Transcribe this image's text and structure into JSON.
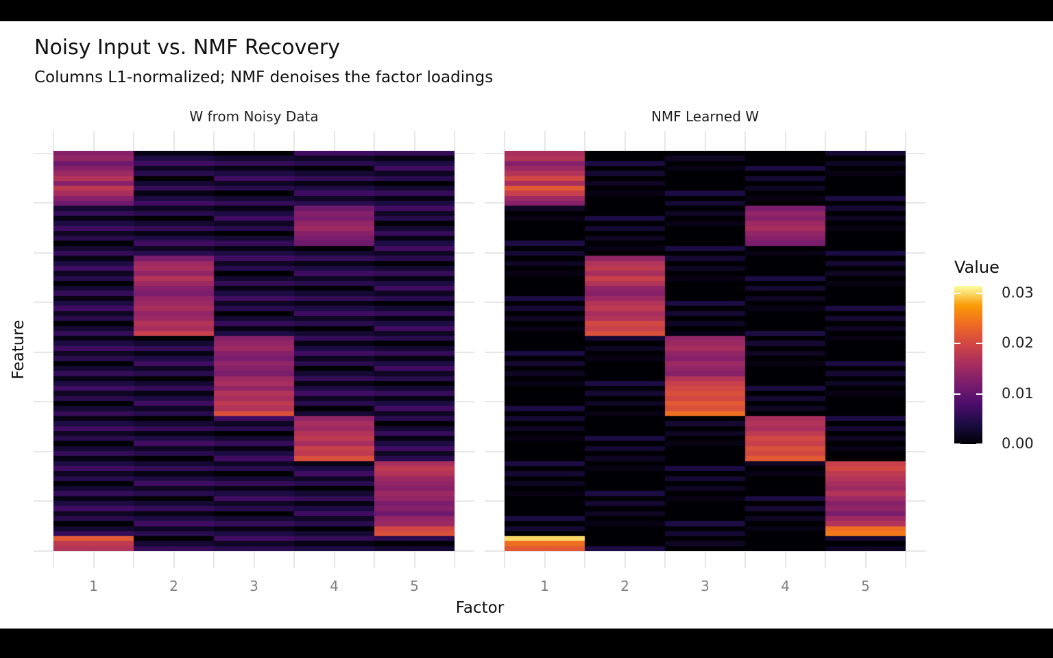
{
  "title": "Noisy Input vs. NMF Recovery",
  "subtitle": "Columns L1-normalized; NMF denoises the factor loadings",
  "axes": {
    "x_label": "Factor",
    "y_label": "Feature",
    "x_ticks": [
      "1",
      "2",
      "3",
      "4",
      "5"
    ]
  },
  "legend": {
    "title": "Value",
    "ticks": [
      "0.03",
      "0.02",
      "0.01",
      "0.00"
    ],
    "tick_values": [
      0.03,
      0.02,
      0.01,
      0.0
    ]
  },
  "style": {
    "background": "#ffffff",
    "letterbox": "#000000",
    "grid_color": "#e7e7e7",
    "tick_label_color": "#7f7f7f",
    "text_color": "#101010"
  },
  "chart_data": {
    "type": "heatmap",
    "title": "Noisy Input vs. NMF Recovery",
    "subtitle": "Columns L1-normalized; NMF denoises the factor loadings",
    "xlabel": "Factor",
    "ylabel": "Feature",
    "factors": [
      1,
      2,
      3,
      4,
      5
    ],
    "n_features": 80,
    "vmin": 0,
    "vmax": 0.0315,
    "value_scale": 0.001,
    "legend_position": "right",
    "grid": true,
    "colormap": {
      "name": "inferno",
      "stops": [
        [
          0.0,
          "#000004"
        ],
        [
          0.125,
          "#1B0C42"
        ],
        [
          0.25,
          "#4B0C6B"
        ],
        [
          0.375,
          "#781C6D"
        ],
        [
          0.5,
          "#A52C60"
        ],
        [
          0.625,
          "#CF4446"
        ],
        [
          0.75,
          "#ED6925"
        ],
        [
          0.875,
          "#FB9A06"
        ],
        [
          1.0,
          "#FCFFA4"
        ]
      ]
    },
    "panels": [
      {
        "title": "W from Noisy Data",
        "noise": {
          "a": 3,
          "b": 7,
          "mod": 8,
          "sub": 0
        },
        "blocks": [
          {
            "factor": 1,
            "start_row": 1,
            "values": [
              13,
              14,
              11,
              13,
              15,
              17,
              13,
              18,
              16,
              13,
              11
            ]
          },
          {
            "factor": 4,
            "start_row": 12,
            "values": [
              11,
              13,
              12,
              14,
              15,
              13,
              12,
              11
            ]
          },
          {
            "factor": 2,
            "start_row": 22,
            "values": [
              12,
              15,
              16,
              14,
              17,
              15,
              13,
              12,
              14,
              15,
              16,
              14,
              15,
              17,
              16,
              19
            ]
          },
          {
            "factor": 3,
            "start_row": 38,
            "values": [
              13,
              14,
              15,
              13,
              12,
              14,
              13,
              12,
              15,
              16,
              14,
              17,
              16,
              18,
              17,
              21
            ]
          },
          {
            "factor": 4,
            "start_row": 54,
            "values": [
              14,
              16,
              15,
              17,
              18,
              16,
              19,
              18,
              21
            ]
          },
          {
            "factor": 5,
            "start_row": 63,
            "values": [
              16,
              18,
              17,
              15,
              14,
              13,
              15,
              14,
              12,
              13,
              11,
              14,
              15,
              20,
              21
            ]
          },
          {
            "factor": 1,
            "start_row": 78,
            "values": [
              22,
              18,
              17
            ]
          }
        ]
      },
      {
        "title": "NMF Learned W",
        "noise": {
          "a": 5,
          "b": 3,
          "mod": 11,
          "sub": 6
        },
        "blocks": [
          {
            "factor": 1,
            "start_row": 1,
            "values": [
              16,
              17,
              13,
              15,
              17,
              20,
              16,
              22,
              19,
              15,
              13
            ]
          },
          {
            "factor": 4,
            "start_row": 12,
            "values": [
              12,
              14,
              13,
              15,
              16,
              14,
              13,
              12
            ]
          },
          {
            "factor": 2,
            "start_row": 22,
            "values": [
              14,
              17,
              18,
              16,
              19,
              17,
              14,
              13,
              15,
              17,
              18,
              16,
              17,
              20,
              19,
              21
            ]
          },
          {
            "factor": 3,
            "start_row": 38,
            "values": [
              14,
              15,
              16,
              14,
              13,
              15,
              14,
              13,
              17,
              19,
              20,
              21,
              20,
              22,
              21,
              24
            ]
          },
          {
            "factor": 4,
            "start_row": 54,
            "values": [
              16,
              17,
              16,
              18,
              20,
              19,
              21,
              20,
              22
            ]
          },
          {
            "factor": 5,
            "start_row": 63,
            "values": [
              19,
              20,
              18,
              17,
              16,
              15,
              17,
              15,
              13,
              14,
              12,
              15,
              17,
              24,
              25
            ]
          },
          {
            "factor": 1,
            "start_row": 78,
            "values": [
              30,
              24,
              22
            ]
          }
        ]
      }
    ]
  }
}
